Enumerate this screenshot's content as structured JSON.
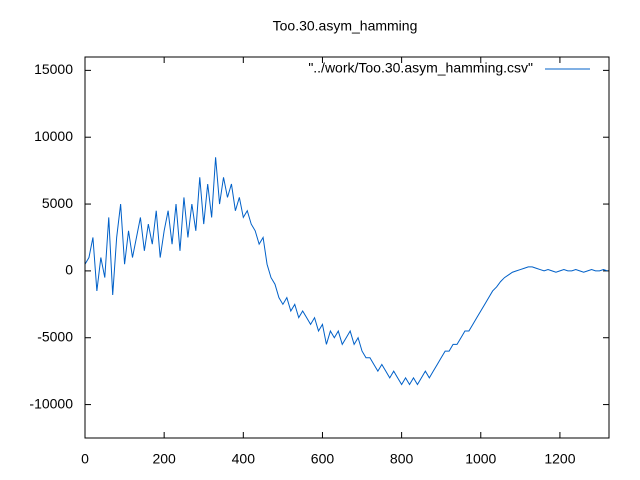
{
  "chart_data": {
    "type": "line",
    "title": "Too.30.asym_hamming",
    "xlim": [
      0,
      1324
    ],
    "ylim": [
      -12500,
      16000
    ],
    "xticks": [
      0,
      200,
      400,
      600,
      800,
      1000,
      1200
    ],
    "yticks": [
      -10000,
      -5000,
      0,
      5000,
      10000,
      15000
    ],
    "legend": "top-right",
    "series": [
      {
        "name": "\"../work/Too.30.asym_hamming.csv\"",
        "color": "#0060c8",
        "x": [
          0,
          10,
          20,
          30,
          40,
          50,
          60,
          70,
          80,
          90,
          100,
          110,
          120,
          130,
          140,
          150,
          160,
          170,
          180,
          190,
          200,
          210,
          220,
          230,
          240,
          250,
          260,
          270,
          280,
          290,
          300,
          310,
          320,
          330,
          340,
          350,
          360,
          370,
          380,
          390,
          400,
          410,
          420,
          430,
          440,
          450,
          460,
          470,
          480,
          490,
          500,
          510,
          520,
          530,
          540,
          550,
          560,
          570,
          580,
          590,
          600,
          610,
          620,
          630,
          640,
          650,
          660,
          670,
          680,
          690,
          700,
          710,
          720,
          730,
          740,
          750,
          760,
          770,
          780,
          790,
          800,
          810,
          820,
          830,
          840,
          850,
          860,
          870,
          880,
          890,
          900,
          910,
          920,
          930,
          940,
          950,
          960,
          970,
          980,
          990,
          1000,
          1010,
          1020,
          1030,
          1040,
          1050,
          1060,
          1070,
          1080,
          1090,
          1100,
          1110,
          1120,
          1130,
          1140,
          1150,
          1160,
          1170,
          1180,
          1190,
          1200,
          1210,
          1220,
          1230,
          1240,
          1250,
          1260,
          1270,
          1280,
          1290,
          1300,
          1310,
          1320
        ],
        "values": [
          500,
          1000,
          2500,
          -1500,
          1000,
          -500,
          4000,
          -1800,
          2500,
          5000,
          500,
          3000,
          1000,
          2500,
          4000,
          1500,
          3500,
          2000,
          4500,
          1000,
          3000,
          4500,
          2000,
          5000,
          1500,
          5500,
          2500,
          5000,
          3000,
          7000,
          3500,
          6500,
          4000,
          8500,
          5000,
          7000,
          5500,
          6500,
          4500,
          5500,
          4000,
          4500,
          3500,
          3000,
          2000,
          2500,
          500,
          -500,
          -1000,
          -2000,
          -2500,
          -2000,
          -3000,
          -2500,
          -3500,
          -3000,
          -3500,
          -4000,
          -3500,
          -4500,
          -4000,
          -5500,
          -4500,
          -5000,
          -4500,
          -5500,
          -5000,
          -4500,
          -5500,
          -5000,
          -6000,
          -6500,
          -6500,
          -7000,
          -7500,
          -7000,
          -7500,
          -8000,
          -7500,
          -8000,
          -8500,
          -8000,
          -8500,
          -8000,
          -8500,
          -8000,
          -7500,
          -8000,
          -7500,
          -7000,
          -6500,
          -6000,
          -6000,
          -5500,
          -5500,
          -5000,
          -4500,
          -4500,
          -4000,
          -3500,
          -3000,
          -2500,
          -2000,
          -1500,
          -1200,
          -800,
          -500,
          -300,
          -100,
          0,
          100,
          200,
          300,
          300,
          200,
          100,
          0,
          100,
          0,
          -100,
          0,
          100,
          0,
          0,
          100,
          0,
          -100,
          0,
          100,
          0,
          0,
          100,
          0
        ]
      }
    ]
  }
}
